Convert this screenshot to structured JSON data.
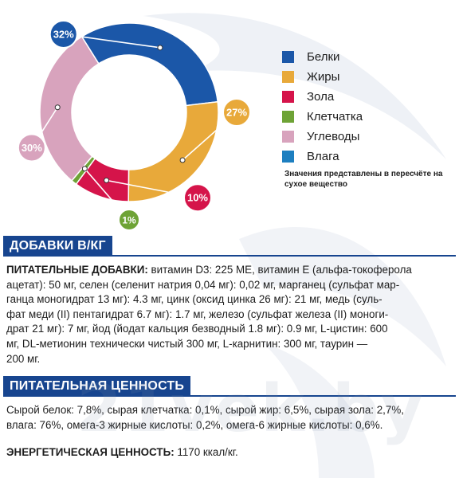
{
  "chart_data": {
    "type": "pie",
    "categories": [
      "Белки",
      "Жиры",
      "Зола",
      "Клетчатка",
      "Углеводы",
      "Влага"
    ],
    "values": [
      32,
      27,
      10,
      1,
      30,
      0
    ],
    "labels": [
      "32%",
      "27%",
      "10%",
      "1%",
      "30%"
    ],
    "colors": [
      "#1b57a8",
      "#e8a93a",
      "#d5144a",
      "#6ea336",
      "#d8a3bd",
      "#1d7fc0"
    ],
    "legend_position": "right",
    "note": "Значения представлены в пересчёте на сухое вещество"
  },
  "additives": {
    "heading": "ДОБАВКИ В/КГ",
    "lead": "ПИТАТЕЛЬНЫЕ ДОБАВКИ:",
    "lines": [
      " витамин D3: 225 МЕ, витамин Е (альфа-токоферола",
      "ацетат): 50 мг, селен (селенит натрия 0,04 мг): 0,02 мг, марганец (сульфат мар-",
      "ганца моногидрат 13 мг): 4.3 мг, цинк (оксид цинка 26 мг): 21 мг, медь (суль-",
      "фат меди (II) пентагидрат 6.7 мг): 1.7 мг, железо (сульфат железа (II) моноги-",
      "драт 21 мг): 7 мг, йод (йодат кальция безводный 1.8 мг): 0.9 мг, L-цистин: 600",
      "мг, DL-метионин технически чистый 300 мг, L-карнитин: 300 мг, таурин —",
      "200 мг."
    ]
  },
  "nutrition": {
    "heading": "ПИТАТЕЛЬНАЯ ЦЕННОСТЬ",
    "lines": [
      "Сырой белок: 7,8%, сырая клетчатка: 0,1%, сырой жир: 6,5%, сырая зола: 2,7%,",
      "влага: 76%, омега-3 жирные кислоты: 0,2%, омега-6 жирные кислоты: 0,6%."
    ],
    "energy_label": "ЭНЕРГЕТИЧЕСКАЯ ЦЕННОСТЬ:",
    "energy_value": " 1170 ккал/кг."
  },
  "watermark": "21vek.by"
}
